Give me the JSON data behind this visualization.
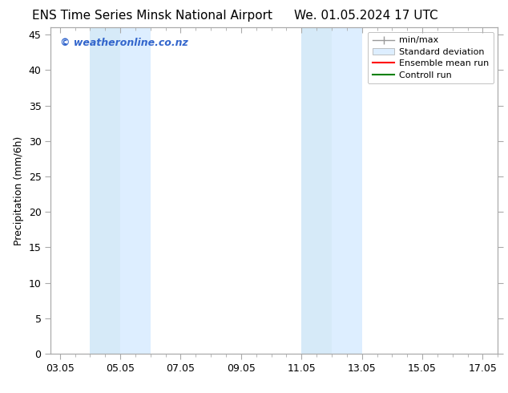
{
  "title_left": "ENS Time Series Minsk National Airport",
  "title_right": "We. 01.05.2024 17 UTC",
  "ylabel": "Precipitation (mm/6h)",
  "xlabel": "",
  "xtick_labels": [
    "03.05",
    "05.05",
    "07.05",
    "09.05",
    "11.05",
    "13.05",
    "15.05",
    "17.05"
  ],
  "xtick_positions": [
    0,
    2,
    4,
    6,
    8,
    10,
    12,
    14
  ],
  "ylim": [
    0,
    46
  ],
  "xlim": [
    -0.3,
    14.3
  ],
  "ytick_positions": [
    0,
    5,
    10,
    15,
    20,
    25,
    30,
    35,
    40,
    45
  ],
  "ytick_labels": [
    "0",
    "5",
    "10",
    "15",
    "20",
    "25",
    "30",
    "35",
    "40",
    "45"
  ],
  "blue_bands": [
    {
      "xstart": 1.0,
      "xend": 2.0,
      "color": "#d6eaf8"
    },
    {
      "xstart": 2.0,
      "xend": 3.0,
      "color": "#ddeeff"
    },
    {
      "xstart": 8.0,
      "xend": 9.0,
      "color": "#d6eaf8"
    },
    {
      "xstart": 9.0,
      "xend": 10.0,
      "color": "#ddeeff"
    }
  ],
  "watermark": "© weatheronline.co.nz",
  "watermark_color": "#3366cc",
  "background_color": "#ffffff",
  "spine_color": "#aaaaaa",
  "title_fontsize": 11,
  "axis_label_fontsize": 9,
  "tick_fontsize": 9,
  "legend_fontsize": 8
}
